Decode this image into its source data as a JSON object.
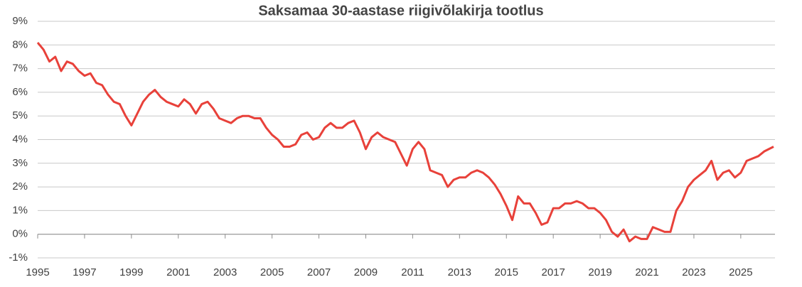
{
  "chart_data": {
    "type": "line",
    "title": "Saksamaa 30-aastase riigivõlakirja tootlus",
    "x": [
      1995.0,
      1995.25,
      1995.5,
      1995.75,
      1996.0,
      1996.25,
      1996.5,
      1996.75,
      1997.0,
      1997.25,
      1997.5,
      1997.75,
      1998.0,
      1998.25,
      1998.5,
      1998.75,
      1999.0,
      1999.25,
      1999.5,
      1999.75,
      2000.0,
      2000.25,
      2000.5,
      2000.75,
      2001.0,
      2001.25,
      2001.5,
      2001.75,
      2002.0,
      2002.25,
      2002.5,
      2002.75,
      2003.0,
      2003.25,
      2003.5,
      2003.75,
      2004.0,
      2004.25,
      2004.5,
      2004.75,
      2005.0,
      2005.25,
      2005.5,
      2005.75,
      2006.0,
      2006.25,
      2006.5,
      2006.75,
      2007.0,
      2007.25,
      2007.5,
      2007.75,
      2008.0,
      2008.25,
      2008.5,
      2008.75,
      2009.0,
      2009.25,
      2009.5,
      2009.75,
      2010.0,
      2010.25,
      2010.5,
      2010.75,
      2011.0,
      2011.25,
      2011.5,
      2011.75,
      2012.0,
      2012.25,
      2012.5,
      2012.75,
      2013.0,
      2013.25,
      2013.5,
      2013.75,
      2014.0,
      2014.25,
      2014.5,
      2014.75,
      2015.0,
      2015.25,
      2015.5,
      2015.75,
      2016.0,
      2016.25,
      2016.5,
      2016.75,
      2017.0,
      2017.25,
      2017.5,
      2017.75,
      2018.0,
      2018.25,
      2018.5,
      2018.75,
      2019.0,
      2019.25,
      2019.5,
      2019.75,
      2020.0,
      2020.25,
      2020.5,
      2020.75,
      2021.0,
      2021.25,
      2021.5,
      2021.75,
      2022.0,
      2022.25,
      2022.5,
      2022.75,
      2023.0,
      2023.25,
      2023.5,
      2023.75,
      2024.0,
      2024.25,
      2024.5,
      2024.75,
      2025.0,
      2025.25,
      2025.5,
      2025.75,
      2026.0,
      2026.4
    ],
    "series": [
      {
        "color": "#e8413a",
        "values": [
          8.1,
          7.8,
          7.3,
          7.5,
          6.9,
          7.3,
          7.2,
          6.9,
          6.7,
          6.8,
          6.4,
          6.3,
          5.9,
          5.6,
          5.5,
          5.0,
          4.6,
          5.1,
          5.6,
          5.9,
          6.1,
          5.8,
          5.6,
          5.5,
          5.4,
          5.7,
          5.5,
          5.1,
          5.5,
          5.6,
          5.3,
          4.9,
          4.8,
          4.7,
          4.9,
          5.0,
          5.0,
          4.9,
          4.9,
          4.5,
          4.2,
          4.0,
          3.7,
          3.7,
          3.8,
          4.2,
          4.3,
          4.0,
          4.1,
          4.5,
          4.7,
          4.5,
          4.5,
          4.7,
          4.8,
          4.3,
          3.6,
          4.1,
          4.3,
          4.1,
          4.0,
          3.9,
          3.4,
          2.9,
          3.6,
          3.9,
          3.6,
          2.7,
          2.6,
          2.5,
          2.0,
          2.3,
          2.4,
          2.4,
          2.6,
          2.7,
          2.6,
          2.4,
          2.1,
          1.7,
          1.2,
          0.6,
          1.6,
          1.3,
          1.3,
          0.9,
          0.4,
          0.5,
          1.1,
          1.1,
          1.3,
          1.3,
          1.4,
          1.3,
          1.1,
          1.1,
          0.9,
          0.6,
          0.1,
          -0.1,
          0.2,
          -0.3,
          -0.1,
          -0.2,
          -0.2,
          0.3,
          0.2,
          0.1,
          0.1,
          1.0,
          1.4,
          2.0,
          2.3,
          2.5,
          2.7,
          3.1,
          2.3,
          2.6,
          2.7,
          2.4,
          2.6,
          3.1,
          3.2,
          3.3,
          3.5,
          3.7
        ]
      }
    ],
    "xlim": [
      1995,
      2026.46
    ],
    "xticks": [
      1995,
      1997,
      1999,
      2001,
      2003,
      2005,
      2007,
      2009,
      2011,
      2013,
      2015,
      2017,
      2019,
      2021,
      2023,
      2025
    ],
    "ylim": [
      -1,
      9
    ],
    "yticks": [
      {
        "value": -1,
        "label": "-1%"
      },
      {
        "value": 0,
        "label": "0%"
      },
      {
        "value": 1,
        "label": "1%"
      },
      {
        "value": 2,
        "label": "2%"
      },
      {
        "value": 3,
        "label": "3%"
      },
      {
        "value": 4,
        "label": "4%"
      },
      {
        "value": 5,
        "label": "5%"
      },
      {
        "value": 6,
        "label": "6%"
      },
      {
        "value": 7,
        "label": "7%"
      },
      {
        "value": 8,
        "label": "8%"
      },
      {
        "value": 9,
        "label": "9%"
      }
    ],
    "grid": true
  }
}
